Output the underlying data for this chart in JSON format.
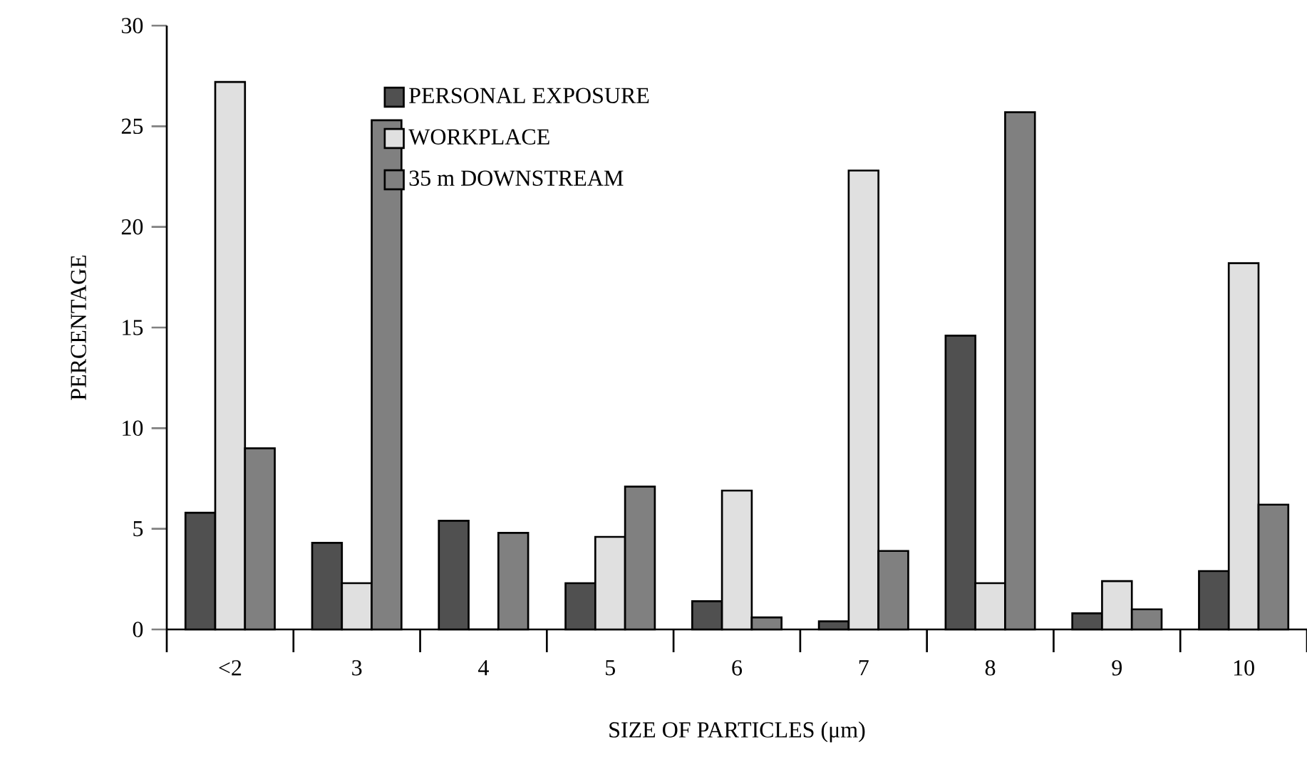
{
  "chart_data": {
    "type": "bar",
    "xlabel": "SIZE OF PARTICLES (μm)",
    "ylabel": "PERCENTAGE",
    "categories": [
      "<2",
      "3",
      "4",
      "5",
      "6",
      "7",
      "8",
      "9",
      "10"
    ],
    "series": [
      {
        "name": "PERSONAL EXPOSURE",
        "color": "#505050",
        "values": [
          5.8,
          4.3,
          5.4,
          2.3,
          1.4,
          0.4,
          14.6,
          0.8,
          2.9
        ]
      },
      {
        "name": "WORKPLACE",
        "color": "#e0e0e0",
        "values": [
          27.2,
          2.3,
          0,
          4.6,
          6.9,
          22.8,
          2.3,
          2.4,
          18.2
        ]
      },
      {
        "name": "35 m DOWNSTREAM",
        "color": "#808080",
        "values": [
          9.0,
          25.3,
          4.8,
          7.1,
          0.6,
          3.9,
          25.7,
          1.0,
          6.2
        ]
      }
    ],
    "ylim": [
      0,
      30
    ],
    "yticks": [
      0,
      5,
      10,
      15,
      20,
      25,
      30
    ],
    "legend": "top left",
    "grid": false
  }
}
